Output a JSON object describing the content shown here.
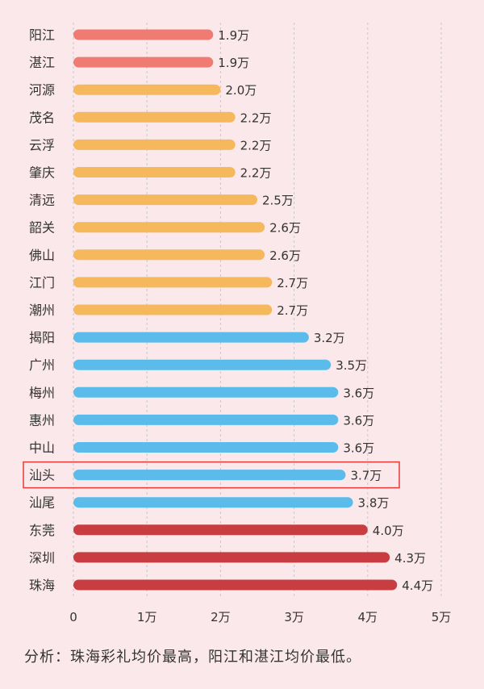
{
  "chart_data": {
    "type": "bar",
    "orientation": "horizontal",
    "categories": [
      "阳江",
      "湛江",
      "河源",
      "茂名",
      "云浮",
      "肇庆",
      "清远",
      "韶关",
      "佛山",
      "江门",
      "潮州",
      "揭阳",
      "广州",
      "梅州",
      "惠州",
      "中山",
      "汕头",
      "汕尾",
      "东莞",
      "深圳",
      "珠海"
    ],
    "values": [
      1.9,
      1.9,
      2.0,
      2.2,
      2.2,
      2.2,
      2.5,
      2.6,
      2.6,
      2.7,
      2.7,
      3.2,
      3.5,
      3.6,
      3.6,
      3.6,
      3.7,
      3.8,
      4.0,
      4.3,
      4.4
    ],
    "value_labels": [
      "1.9万",
      "1.9万",
      "2.0万",
      "2.2万",
      "2.2万",
      "2.2万",
      "2.5万",
      "2.6万",
      "2.6万",
      "2.7万",
      "2.7万",
      "3.2万",
      "3.5万",
      "3.6万",
      "3.6万",
      "3.6万",
      "3.7万",
      "3.8万",
      "4.0万",
      "4.3万",
      "4.4万"
    ],
    "xlim": [
      0,
      5
    ],
    "x_ticks": [
      0,
      1,
      2,
      3,
      4,
      5
    ],
    "x_tick_labels": [
      "0",
      "1万",
      "2万",
      "3万",
      "4万",
      "5万"
    ],
    "grid": "vertical dashed",
    "highlight_category": "汕头",
    "colors": {
      "group1": "#f07b73",
      "group2": "#f5b85c",
      "group3": "#5bbbeb",
      "group4": "#c83d42",
      "highlight_box": "#e83a3a",
      "grid": "#c8c8c8",
      "text": "#333333"
    },
    "bar_colors": [
      "group1",
      "group1",
      "group2",
      "group2",
      "group2",
      "group2",
      "group2",
      "group2",
      "group2",
      "group2",
      "group2",
      "group3",
      "group3",
      "group3",
      "group3",
      "group3",
      "group3",
      "group3",
      "group4",
      "group4",
      "group4"
    ]
  },
  "note": "分析：珠海彩礼均价最高，阳江和湛江均价最低。"
}
